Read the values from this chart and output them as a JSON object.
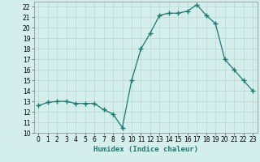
{
  "x": [
    0,
    1,
    2,
    3,
    4,
    5,
    6,
    7,
    8,
    9,
    10,
    11,
    12,
    13,
    14,
    15,
    16,
    17,
    18,
    19,
    20,
    21,
    22,
    23
  ],
  "y": [
    12.6,
    12.9,
    13.0,
    13.0,
    12.8,
    12.8,
    12.8,
    12.2,
    11.8,
    10.5,
    15.0,
    18.0,
    19.5,
    21.2,
    21.4,
    21.4,
    21.6,
    22.2,
    21.2,
    20.4,
    17.0,
    16.0,
    15.0,
    14.0
  ],
  "line_color": "#1a7a6e",
  "marker": "+",
  "marker_size": 4,
  "bg_color": "#d4eeeb",
  "grid_color": "#b8d8d4",
  "xlabel": "Humidex (Indice chaleur)",
  "xlim": [
    -0.5,
    23.5
  ],
  "ylim": [
    10,
    22.5
  ],
  "yticks": [
    10,
    11,
    12,
    13,
    14,
    15,
    16,
    17,
    18,
    19,
    20,
    21,
    22
  ],
  "xticks": [
    0,
    1,
    2,
    3,
    4,
    5,
    6,
    7,
    8,
    9,
    10,
    11,
    12,
    13,
    14,
    15,
    16,
    17,
    18,
    19,
    20,
    21,
    22,
    23
  ],
  "label_fontsize": 6.5,
  "tick_fontsize": 5.5,
  "linewidth": 0.9,
  "marker_color": "#1a7a6e"
}
